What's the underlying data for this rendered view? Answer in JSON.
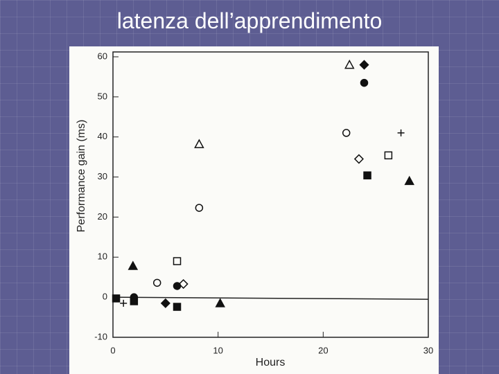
{
  "slide_title": "latenza dell’apprendimento",
  "chart_data": {
    "type": "scatter",
    "xlabel": "Hours",
    "ylabel": "Performance gain (ms)",
    "xlim": [
      0,
      30
    ],
    "xticks": [
      0,
      10,
      20,
      30
    ],
    "ylim": [
      -10,
      60
    ],
    "yticks": [
      -10,
      0,
      10,
      20,
      30,
      40,
      50,
      60
    ],
    "zero_line": true,
    "series": [
      {
        "marker": "triangle-open",
        "color": "#111111",
        "x": [
          22.5,
          8.2
        ],
        "values": [
          58,
          38.2
        ]
      },
      {
        "marker": "diamond-filled",
        "color": "#111111",
        "x": [
          23.9,
          5
        ],
        "values": [
          58,
          -1.5
        ]
      },
      {
        "marker": "circle-filled",
        "color": "#111111",
        "x": [
          23.9,
          6.1,
          2
        ],
        "values": [
          53.5,
          2.8,
          0
        ]
      },
      {
        "marker": "circle-open",
        "color": "#111111",
        "x": [
          22.2,
          8.2,
          4.2
        ],
        "values": [
          41,
          22.3,
          3.6
        ]
      },
      {
        "marker": "plus",
        "color": "#111111",
        "x": [
          27.4,
          1
        ],
        "values": [
          41,
          -1.5
        ]
      },
      {
        "marker": "diamond-open",
        "color": "#111111",
        "x": [
          23.4,
          6.7
        ],
        "values": [
          34.5,
          3.3
        ]
      },
      {
        "marker": "square-open",
        "color": "#111111",
        "x": [
          26.2,
          6.1
        ],
        "values": [
          35.4,
          9
        ]
      },
      {
        "marker": "square-filled",
        "color": "#111111",
        "x": [
          24.2,
          6.1,
          2,
          0.3
        ],
        "values": [
          30.4,
          -2.4,
          -1,
          -0.3
        ]
      },
      {
        "marker": "triangle-filled",
        "color": "#111111",
        "x": [
          28.2,
          1.9,
          10.2
        ],
        "values": [
          29,
          7.8,
          -1.5
        ]
      }
    ]
  }
}
